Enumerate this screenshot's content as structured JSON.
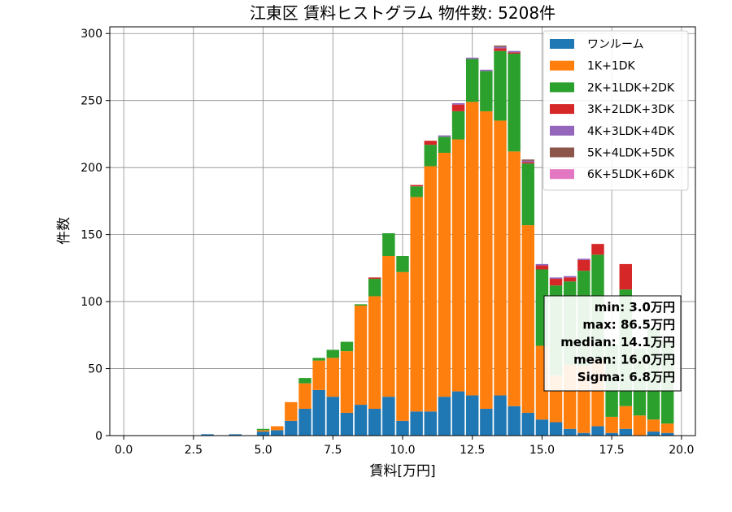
{
  "chart_data": {
    "type": "bar",
    "stacked": true,
    "title": "江東区 賃料ヒストグラム 物件数: 5208件",
    "xlabel": "賃料[万円]",
    "ylabel": "件数",
    "xlim": [
      -0.5,
      20.5
    ],
    "ylim": [
      0,
      305
    ],
    "xticks": [
      0,
      2.5,
      5,
      7.5,
      10,
      12.5,
      15,
      17.5,
      20
    ],
    "xtick_labels": [
      "0.0",
      "2.5",
      "5.0",
      "7.5",
      "10.0",
      "12.5",
      "15.0",
      "17.5",
      "20.0"
    ],
    "yticks": [
      0,
      50,
      100,
      150,
      200,
      250,
      300
    ],
    "ytick_labels": [
      "0",
      "50",
      "100",
      "150",
      "200",
      "250",
      "300"
    ],
    "grid": true,
    "legend_position": "top-right",
    "bin_width": 0.5,
    "x": [
      3.0,
      3.5,
      4.0,
      4.5,
      5.0,
      5.5,
      6.0,
      6.5,
      7.0,
      7.5,
      8.0,
      8.5,
      9.0,
      9.5,
      10.0,
      10.5,
      11.0,
      11.5,
      12.0,
      12.5,
      13.0,
      13.5,
      14.0,
      14.5,
      15.0,
      15.5,
      16.0,
      16.5,
      17.0,
      17.5,
      18.0,
      18.5,
      19.0,
      19.5
    ],
    "series": [
      {
        "name": "ワンルーム",
        "color": "#1f77b4",
        "values": [
          1,
          0,
          1,
          0,
          3,
          4,
          11,
          20,
          34,
          29,
          17,
          23,
          20,
          29,
          11,
          18,
          18,
          29,
          33,
          30,
          20,
          30,
          22,
          17,
          12,
          10,
          5,
          2,
          7,
          2,
          5,
          0,
          3,
          2
        ]
      },
      {
        "name": "1K+1DK",
        "color": "#ff7f0e",
        "values": [
          0,
          0,
          0,
          0,
          1,
          3,
          14,
          19,
          22,
          29,
          46,
          74,
          84,
          105,
          111,
          160,
          183,
          182,
          188,
          219,
          222,
          205,
          190,
          140,
          55,
          35,
          48,
          50,
          50,
          12,
          17,
          15,
          9,
          7
        ]
      },
      {
        "name": "2K+1LDK+2DK",
        "color": "#2ca02c",
        "values": [
          0,
          0,
          0,
          0,
          1,
          0,
          0,
          4,
          2,
          6,
          7,
          1,
          13,
          17,
          12,
          8,
          16,
          12,
          21,
          32,
          30,
          52,
          73,
          46,
          57,
          67,
          62,
          71,
          78,
          54,
          87,
          50,
          68,
          62
        ]
      },
      {
        "name": "3K+2LDK+3DK",
        "color": "#d62728",
        "values": [
          0,
          0,
          0,
          0,
          0,
          0,
          0,
          0,
          0,
          0,
          0,
          0,
          1,
          0,
          0,
          1,
          3,
          0,
          5,
          0,
          0,
          2,
          1,
          1,
          3,
          5,
          3,
          8,
          8,
          0,
          19,
          0,
          0,
          0
        ]
      },
      {
        "name": "4K+3LDK+4DK",
        "color": "#9467bd",
        "values": [
          0,
          0,
          0,
          0,
          0,
          0,
          0,
          0,
          0,
          0,
          0,
          0,
          0,
          0,
          0,
          0,
          0,
          1,
          1,
          1,
          1,
          1,
          1,
          1,
          1,
          1,
          1,
          1,
          0,
          0,
          0,
          0,
          0,
          0
        ]
      },
      {
        "name": "5K+4LDK+5DK",
        "color": "#8c564b",
        "values": [
          0,
          0,
          0,
          0,
          0,
          0,
          0,
          0,
          0,
          0,
          0,
          0,
          0,
          0,
          0,
          0,
          0,
          0,
          0,
          0,
          0,
          1,
          0,
          1,
          0,
          0,
          0,
          0,
          0,
          0,
          0,
          0,
          0,
          0
        ]
      },
      {
        "name": "6K+5LDK+6DK",
        "color": "#e377c2",
        "values": [
          0,
          0,
          0,
          0,
          0,
          0,
          0,
          0,
          0,
          0,
          0,
          0,
          0,
          0,
          0,
          0,
          0,
          0,
          0,
          0,
          0,
          0,
          0,
          0,
          0,
          0,
          0,
          0,
          0,
          0,
          0,
          0,
          0,
          0
        ]
      }
    ],
    "stats": [
      "min: 3.0万円",
      "max: 86.5万円",
      "median: 14.1万円",
      "mean: 16.0万円",
      "Sigma: 6.8万円"
    ]
  }
}
